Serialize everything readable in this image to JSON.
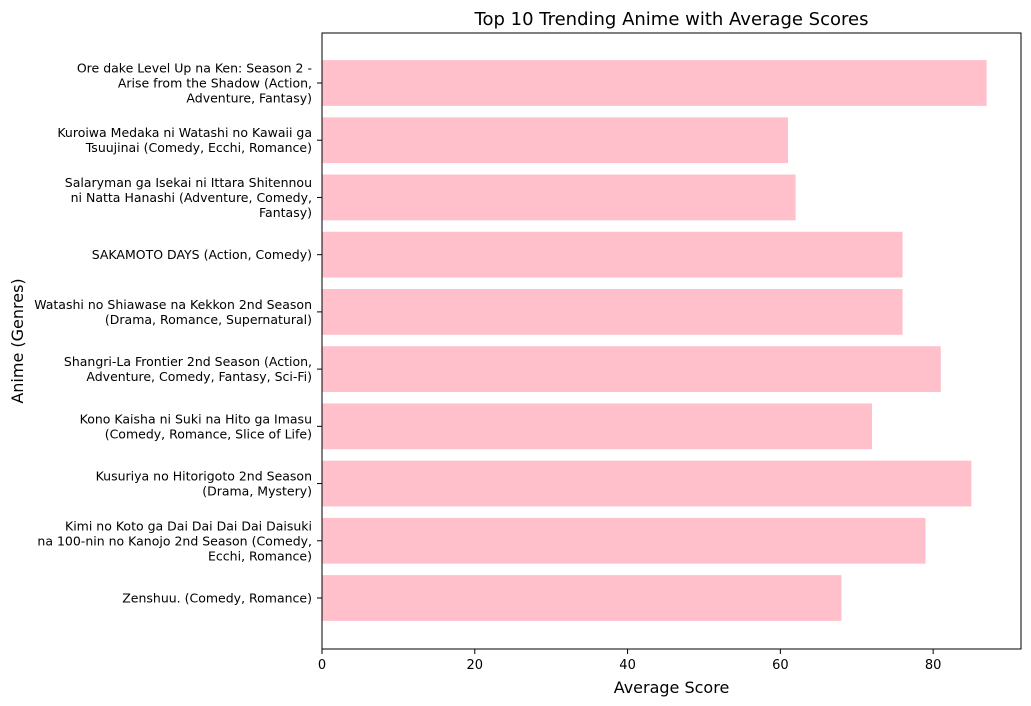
{
  "chart_data": {
    "type": "bar",
    "orientation": "horizontal",
    "title": "Top 10 Trending Anime with Average Scores",
    "xlabel": "Average Score",
    "ylabel": "Anime (Genres)",
    "xlim": [
      0,
      91.5
    ],
    "xticks": [
      0,
      20,
      40,
      60,
      80
    ],
    "bar_color": "#ffc0cb",
    "grid": false,
    "categories": [
      [
        "Ore dake Level Up na Ken: Season 2 -",
        "Arise from the Shadow (Action,",
        "Adventure, Fantasy)"
      ],
      [
        "Kuroiwa Medaka ni Watashi no Kawaii ga",
        "Tsuujinai (Comedy, Ecchi, Romance)"
      ],
      [
        "Salaryman ga Isekai ni Ittara Shitennou",
        "ni Natta Hanashi (Adventure, Comedy,",
        "Fantasy)"
      ],
      [
        "SAKAMOTO DAYS (Action, Comedy)"
      ],
      [
        "Watashi no Shiawase na Kekkon 2nd Season",
        "(Drama, Romance, Supernatural)"
      ],
      [
        "Shangri-La Frontier 2nd Season (Action,",
        "Adventure, Comedy, Fantasy, Sci-Fi)"
      ],
      [
        "Kono Kaisha ni Suki na Hito ga Imasu",
        "(Comedy, Romance, Slice of Life)"
      ],
      [
        "Kusuriya no Hitorigoto 2nd Season",
        "(Drama, Mystery)"
      ],
      [
        "Kimi no Koto ga Dai Dai Dai Dai Daisuki",
        "na 100-nin no Kanojo 2nd Season (Comedy,",
        "Ecchi, Romance)"
      ],
      [
        "Zenshuu. (Comedy, Romance)"
      ]
    ],
    "values": [
      87,
      61,
      62,
      76,
      76,
      81,
      72,
      85,
      79,
      68
    ]
  }
}
